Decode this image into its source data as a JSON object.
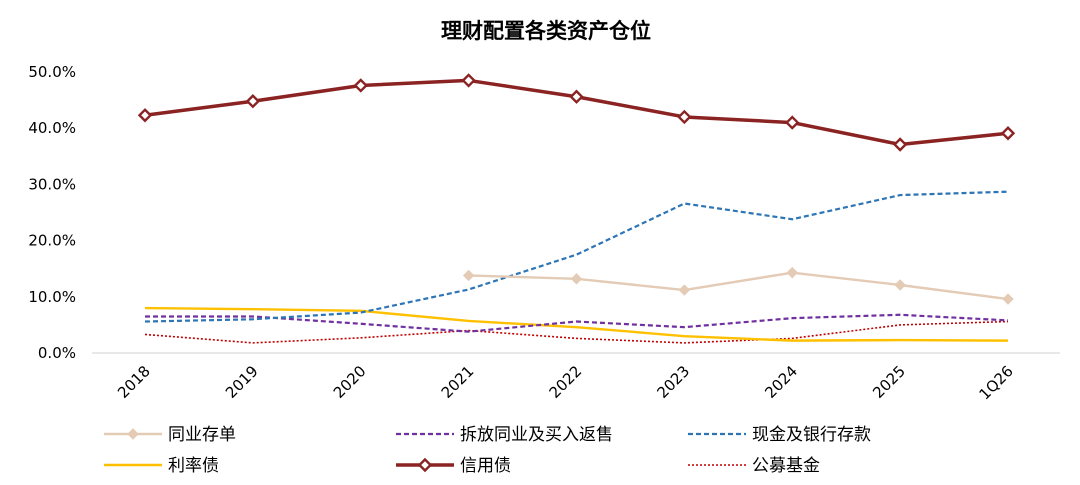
{
  "chart_data": {
    "type": "line",
    "title": "理财配置各类资产仓位",
    "xlabel": "",
    "ylabel": "",
    "categories": [
      "2018",
      "2019",
      "2020",
      "2021",
      "2022",
      "2023",
      "2024",
      "2025",
      "1Q26"
    ],
    "yticks": [
      "0.0%",
      "10.0%",
      "20.0%",
      "30.0%",
      "40.0%",
      "50.0%"
    ],
    "ylim": [
      0,
      50
    ],
    "grid": false,
    "legend_position": "bottom",
    "series": [
      {
        "name": "同业存单",
        "color": "#e3cbb5",
        "style": "solid",
        "marker": "diamond-filled",
        "values": [
          null,
          null,
          null,
          13.8,
          13.2,
          11.2,
          14.3,
          12.1,
          9.6
        ]
      },
      {
        "name": "拆放同业及买入返售",
        "color": "#7030a0",
        "style": "dashed",
        "marker": "none",
        "values": [
          6.5,
          6.5,
          5.2,
          3.8,
          5.6,
          4.6,
          6.2,
          6.8,
          5.8
        ]
      },
      {
        "name": "现金及银行存款",
        "color": "#2e75b6",
        "style": "dashed",
        "marker": "none",
        "values": [
          5.6,
          6.0,
          7.2,
          11.3,
          17.5,
          26.6,
          23.8,
          28.1,
          28.7
        ]
      },
      {
        "name": "利率债",
        "color": "#ffc000",
        "style": "solid",
        "marker": "none",
        "values": [
          8.0,
          7.8,
          7.5,
          5.7,
          4.6,
          3.0,
          2.2,
          2.3,
          2.2
        ]
      },
      {
        "name": "信用债",
        "color": "#8b2323",
        "style": "solid",
        "marker": "diamond-open",
        "values": [
          42.3,
          44.8,
          47.6,
          48.5,
          45.6,
          42.0,
          41.0,
          37.1,
          39.1
        ]
      },
      {
        "name": "公募基金",
        "color": "#c00000",
        "style": "dotted",
        "marker": "none",
        "values": [
          3.3,
          1.8,
          2.7,
          4.0,
          2.6,
          1.8,
          2.6,
          5.0,
          5.6
        ]
      }
    ]
  }
}
